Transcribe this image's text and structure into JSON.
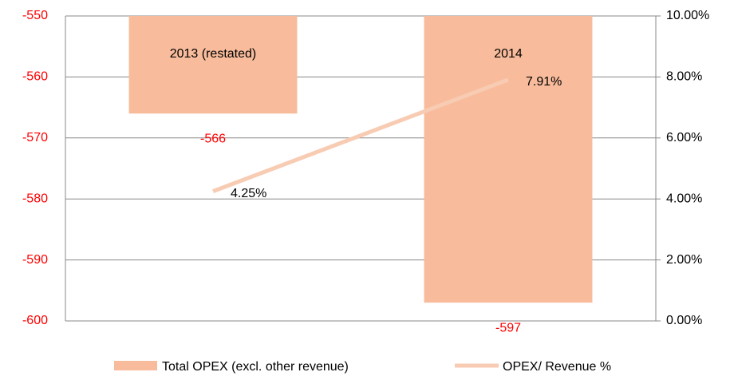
{
  "chart_data": {
    "type": "bar",
    "categories": [
      "2013 (restated)",
      "2014"
    ],
    "series": [
      {
        "name": "Total OPEX (excl. other revenue)",
        "type": "bar",
        "color": "#f8bc9c",
        "label_color": "#ff0000",
        "values": [
          -566,
          -597
        ]
      },
      {
        "name": "OPEX/ Revenue %",
        "type": "line",
        "axis": "y2",
        "color": "#f8cbb3",
        "values": [
          4.25,
          7.91
        ],
        "value_labels": [
          "4.25%",
          "7.91%"
        ]
      }
    ],
    "ylim": [
      -600,
      -550
    ],
    "yticks": [
      -600,
      -590,
      -580,
      -570,
      -560,
      -550
    ],
    "ytick_color": "#ff0000",
    "y2lim": [
      0,
      10
    ],
    "y2ticks": [
      {
        "value": 0,
        "label": "0.00%"
      },
      {
        "value": 2,
        "label": "2.00%"
      },
      {
        "value": 4,
        "label": "4.00%"
      },
      {
        "value": 6,
        "label": "6.00%"
      },
      {
        "value": 8,
        "label": "8.00%"
      },
      {
        "value": 10,
        "label": "10.00%"
      }
    ],
    "grid": true,
    "legend": "bottom"
  }
}
